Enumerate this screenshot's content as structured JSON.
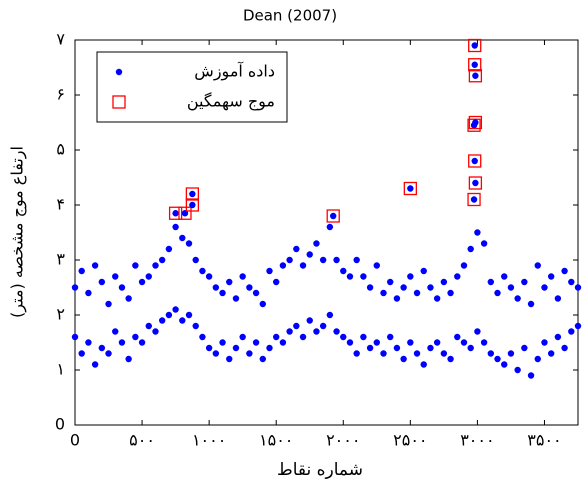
{
  "chart_data": {
    "type": "scatter",
    "title": "Dean (2007)",
    "xlabel": "شماره نقاط",
    "ylabel": "ارتفاع موج مشخصه (متر)",
    "xlim": [
      0,
      3750
    ],
    "ylim": [
      0,
      7
    ],
    "xticks": [
      0,
      {
        "value": 500,
        "label": "۵۰۰"
      },
      {
        "value": 1000,
        "label": "۱۰۰۰"
      },
      {
        "value": 1500,
        "label": "۱۵۰۰"
      },
      {
        "value": 2000,
        "label": "۲۰۰۰"
      },
      {
        "value": 2500,
        "label": "۲۵۰۰"
      },
      {
        "value": 3000,
        "label": "۳۰۰۰"
      },
      {
        "value": 3500,
        "label": "۳۵۰۰"
      }
    ],
    "yticks": [
      0,
      {
        "value": 1,
        "label": "۱"
      },
      {
        "value": 2,
        "label": "۲"
      },
      {
        "value": 3,
        "label": "۳"
      },
      {
        "value": 4,
        "label": "۴"
      },
      {
        "value": 5,
        "label": "۵"
      },
      {
        "value": 6,
        "label": "۶"
      },
      {
        "value": 7,
        "label": "۷"
      }
    ],
    "legend": "upper left",
    "series": [
      {
        "name": "داده آموزش",
        "color": "#0000ff",
        "marker": "dot",
        "x": [
          0,
          0,
          50,
          50,
          100,
          100,
          150,
          150,
          200,
          200,
          250,
          250,
          300,
          300,
          350,
          350,
          400,
          400,
          450,
          450,
          500,
          500,
          550,
          550,
          600,
          600,
          650,
          650,
          700,
          700,
          750,
          750,
          800,
          800,
          850,
          850,
          900,
          900,
          950,
          950,
          1000,
          1000,
          1050,
          1050,
          1100,
          1100,
          1150,
          1150,
          1200,
          1200,
          1250,
          1250,
          1300,
          1300,
          1350,
          1350,
          1400,
          1400,
          1450,
          1450,
          1500,
          1500,
          1550,
          1550,
          1600,
          1600,
          1650,
          1650,
          1700,
          1700,
          1750,
          1750,
          1800,
          1800,
          1850,
          1850,
          1900,
          1900,
          1950,
          1950,
          2000,
          2000,
          2050,
          2050,
          2100,
          2100,
          2150,
          2150,
          2200,
          2200,
          2250,
          2250,
          2300,
          2300,
          2350,
          2350,
          2400,
          2400,
          2450,
          2450,
          2500,
          2500,
          2550,
          2550,
          2600,
          2600,
          2650,
          2650,
          2700,
          2700,
          2750,
          2750,
          2800,
          2800,
          2850,
          2850,
          2900,
          2900,
          2950,
          2950,
          3000,
          3000,
          3050,
          3050,
          3100,
          3100,
          3150,
          3150,
          3200,
          3200,
          3250,
          3250,
          3300,
          3300,
          3350,
          3350,
          3400,
          3400,
          3450,
          3450,
          3500,
          3500,
          3550,
          3550,
          3600,
          3600,
          3650,
          3650,
          3700,
          3700,
          3750,
          3750
        ],
        "values": [
          1.6,
          2.5,
          1.3,
          2.8,
          1.5,
          2.4,
          1.1,
          2.9,
          1.4,
          2.6,
          1.3,
          2.2,
          1.7,
          2.7,
          1.5,
          2.5,
          1.2,
          2.3,
          1.6,
          2.9,
          1.5,
          2.6,
          1.8,
          2.7,
          1.7,
          2.9,
          1.9,
          3.0,
          2.0,
          3.2,
          2.1,
          3.6,
          1.9,
          3.4,
          2.0,
          3.3,
          1.8,
          3.0,
          1.6,
          2.8,
          1.4,
          2.7,
          1.3,
          2.5,
          1.5,
          2.4,
          1.2,
          2.6,
          1.4,
          2.3,
          1.6,
          2.7,
          1.3,
          2.5,
          1.5,
          2.4,
          1.2,
          2.2,
          1.4,
          2.8,
          1.6,
          2.6,
          1.5,
          2.9,
          1.7,
          3.0,
          1.8,
          3.2,
          1.6,
          2.9,
          1.9,
          3.1,
          1.7,
          3.3,
          1.8,
          3.0,
          2.0,
          3.6,
          1.7,
          3.0,
          1.6,
          2.8,
          1.5,
          2.7,
          1.3,
          3.0,
          1.6,
          2.7,
          1.4,
          2.5,
          1.5,
          2.9,
          1.3,
          2.4,
          1.6,
          2.6,
          1.4,
          2.3,
          1.2,
          2.5,
          1.5,
          2.7,
          1.3,
          2.4,
          1.1,
          2.8,
          1.4,
          2.5,
          1.5,
          2.3,
          1.3,
          2.6,
          1.2,
          2.4,
          1.6,
          2.7,
          1.5,
          2.9,
          1.4,
          3.2,
          1.7,
          3.5,
          1.5,
          3.3,
          1.3,
          2.6,
          1.2,
          2.4,
          1.1,
          2.7,
          1.3,
          2.5,
          1.0,
          2.3,
          1.4,
          2.6,
          0.9,
          2.2,
          1.2,
          2.9,
          1.5,
          2.5,
          1.3,
          2.7,
          1.6,
          2.3,
          1.4,
          2.8,
          1.7,
          2.6,
          1.8,
          2.5
        ]
      },
      {
        "name": "موج سهمگین",
        "color": "#ff0000",
        "marker": "square",
        "x": [
          750,
          820,
          875,
          875,
          1925,
          2500,
          2980,
          2980,
          2985,
          2975,
          2985,
          2980,
          2985,
          2975
        ],
        "values": [
          3.85,
          3.85,
          4.2,
          4.0,
          3.8,
          4.3,
          6.9,
          6.55,
          6.35,
          5.45,
          5.5,
          4.8,
          4.4,
          4.1
        ]
      }
    ]
  }
}
